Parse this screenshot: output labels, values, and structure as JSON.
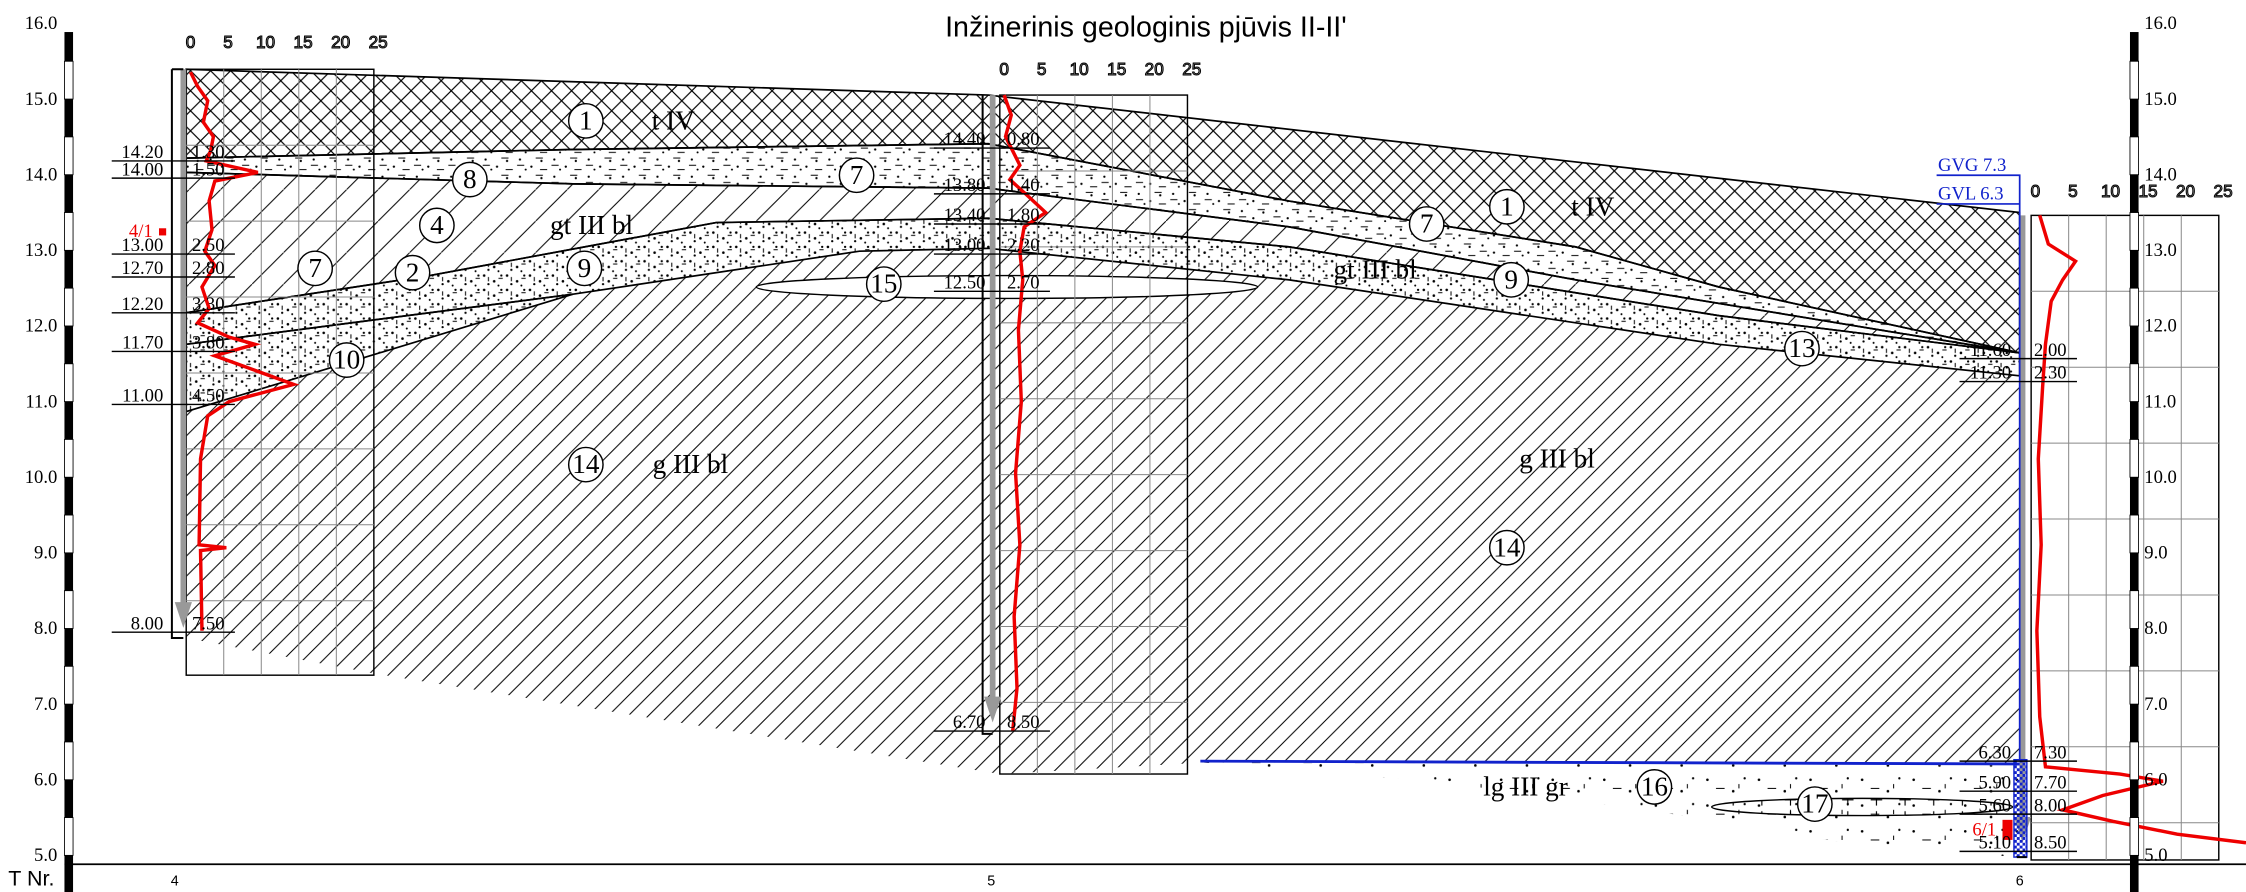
{
  "title": "Inžinerinis geologinis pjūvis II-II'",
  "elevation_labels": [
    "16.0",
    "15.0",
    "14.0",
    "13.0",
    "12.0",
    "11.0",
    "10.0",
    "9.0",
    "8.0",
    "7.0",
    "6.0",
    "5.0"
  ],
  "cpt_scale": [
    "0",
    "5",
    "10",
    "15",
    "20",
    "25"
  ],
  "row_label": "T Nr.",
  "boreholes": [
    {
      "number": "4",
      "elevations": [
        "14.20",
        "14.00",
        "13.00",
        "12.70",
        "12.20",
        "11.70",
        "11.00",
        "8.00"
      ],
      "depths": [
        "1.30",
        "1.50",
        "2.50",
        "2.80",
        "3.30",
        "3.80",
        "4.50",
        "7.50"
      ],
      "sample": "4/1"
    },
    {
      "number": "5",
      "elevations": [
        "14.40",
        "13.80",
        "13.40",
        "13.00",
        "12.50",
        "6.70"
      ],
      "depths": [
        "0.80",
        "1.40",
        "1.80",
        "2.20",
        "2.70",
        "8.50"
      ]
    },
    {
      "number": "6",
      "elevations": [
        "11.60",
        "11.30",
        "6.30",
        "5.90",
        "5.60",
        "5.10"
      ],
      "depths": [
        "2.00",
        "2.30",
        "7.30",
        "7.70",
        "8.00",
        "8.50"
      ],
      "sample": "6/1"
    }
  ],
  "groundwater": {
    "gvg": "GVG 7.3",
    "gvl": "GVL 6.3"
  },
  "layer_labels": [
    "1",
    "t IV",
    "8",
    "7",
    "4",
    "gt III bl",
    "7",
    "2",
    "9",
    "10",
    "15",
    "14",
    "g III bl",
    "1",
    "t IV",
    "7",
    "gt III bl",
    "9",
    "13",
    "g III bl",
    "14",
    "16",
    "lg III gr",
    "17"
  ]
}
